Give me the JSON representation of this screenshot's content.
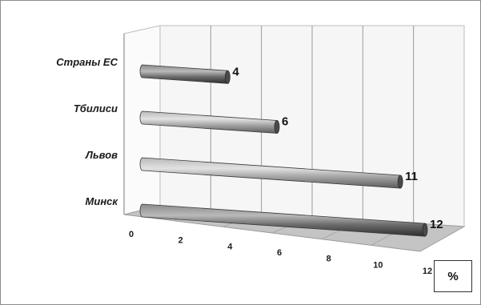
{
  "chart_data": {
    "type": "bar",
    "orientation": "horizontal",
    "style": "3d-cylinder",
    "categories": [
      "Страны ЕС",
      "Тбилиси",
      "Львов",
      "Минск"
    ],
    "values": [
      4,
      6,
      11,
      12
    ],
    "value_labels": [
      "4",
      "6",
      "11",
      "12"
    ],
    "x_ticks": [
      "0",
      "2",
      "4",
      "6",
      "8",
      "10",
      "12"
    ],
    "xlim": [
      0,
      12
    ],
    "unit_label": "%",
    "grid": true,
    "legend": "none",
    "colors": {
      "bar_dark": "#5a5a5a",
      "bar_light": "#9a9a9a",
      "floor": "#c4c4c4",
      "wall": "#f6f6f6",
      "grid": "#9a9a9a"
    }
  }
}
